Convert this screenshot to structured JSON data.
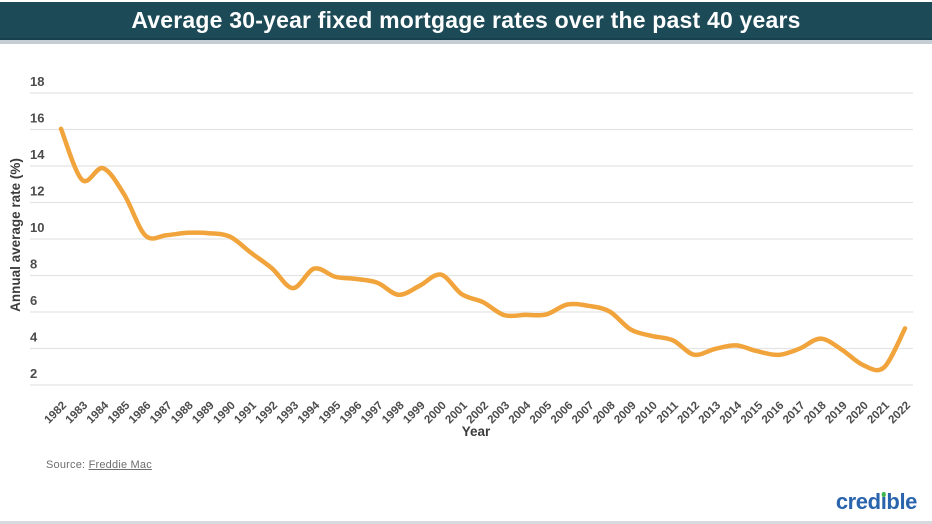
{
  "header": {
    "title": "Average 30-year fixed mortgage rates over the past 40 years"
  },
  "chart_data": {
    "type": "line",
    "title": "Average 30-year fixed mortgage rates over the past 40 years",
    "xlabel": "Year",
    "ylabel": "Annual average rate (%)",
    "x": [
      1982,
      1983,
      1984,
      1985,
      1986,
      1987,
      1988,
      1989,
      1990,
      1991,
      1992,
      1993,
      1994,
      1995,
      1996,
      1997,
      1998,
      1999,
      2000,
      2001,
      2002,
      2003,
      2004,
      2005,
      2006,
      2007,
      2008,
      2009,
      2010,
      2011,
      2012,
      2013,
      2014,
      2015,
      2016,
      2017,
      2018,
      2019,
      2020,
      2021,
      2022
    ],
    "series": [
      {
        "name": "Average 30-year fixed mortgage rate (%)",
        "color": "#F2A43C",
        "values": [
          16.04,
          13.24,
          13.88,
          12.43,
          10.19,
          10.21,
          10.34,
          10.32,
          10.13,
          9.25,
          8.39,
          7.31,
          8.38,
          7.93,
          7.81,
          7.6,
          6.94,
          7.44,
          8.05,
          6.97,
          6.54,
          5.83,
          5.84,
          5.87,
          6.41,
          6.34,
          6.03,
          5.04,
          4.69,
          4.45,
          3.66,
          3.98,
          4.17,
          3.85,
          3.65,
          3.99,
          4.54,
          3.94,
          3.1,
          2.96,
          5.1
        ]
      }
    ],
    "ylim": [
      2,
      18
    ],
    "yticks": [
      2,
      4,
      6,
      8,
      10,
      12,
      14,
      16,
      18
    ],
    "grid": true,
    "legend_position": "none"
  },
  "footer": {
    "source_label": "Source:",
    "source_name": "Freddie Mac",
    "logo": {
      "name": "credible",
      "part1": "cred",
      "dotless_i": "ı",
      "part2": "ble",
      "blue": "#2a64ad",
      "green": "#3eb54b"
    }
  },
  "colors": {
    "banner": "#1c4a56",
    "line": "#F2A43C",
    "gridline": "#e4e4e4",
    "tick_text": "#4c4c4c",
    "axis_title_text": "#3c3c3c"
  }
}
